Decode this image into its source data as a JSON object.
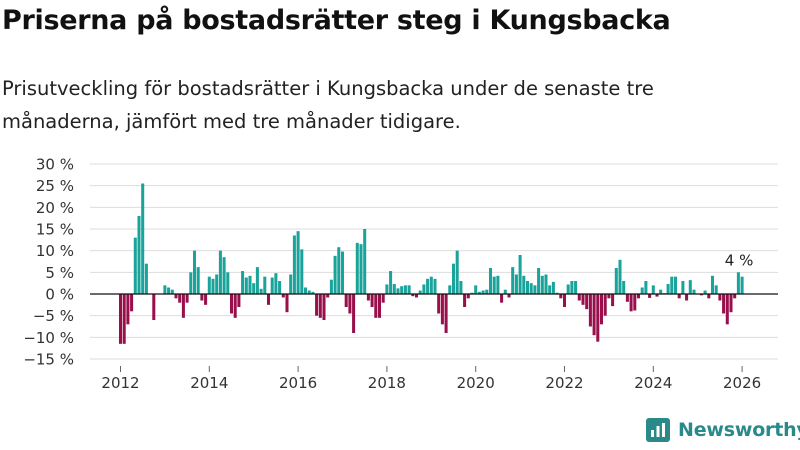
{
  "header": {
    "title": "Priserna på bostadsrätter steg i Kungsbacka",
    "subtitle": "Prisutveckling för bostadsrätter i Kungsbacka under de senaste tre månaderna, jämfört med tre månader tidigare."
  },
  "brand": {
    "name": "Newsworthy",
    "icon": "newsworthy-logo-icon"
  },
  "colors": {
    "positive": "#1aa39a",
    "negative": "#990f4b",
    "grid": "#dddddd",
    "axis": "#111111",
    "text": "#333333"
  },
  "chart_data": {
    "type": "bar",
    "title": "Priserna på bostadsrätter steg i Kungsbacka",
    "xlabel": "",
    "ylabel": "",
    "x_unit": "month",
    "start": "2012-01",
    "ylim": [
      -15,
      30
    ],
    "yticks": [
      -15,
      -10,
      -5,
      0,
      5,
      10,
      15,
      20,
      25,
      30
    ],
    "ytick_labels": [
      "−15 %",
      "−10 %",
      "−5 %",
      "0 %",
      "5 %",
      "10 %",
      "15 %",
      "20 %",
      "25 %",
      "30 %"
    ],
    "xticks": [
      2012,
      2014,
      2016,
      2018,
      2020,
      2022,
      2024,
      2026
    ],
    "xtick_labels": [
      "2012",
      "2014",
      "2016",
      "2018",
      "2020",
      "2022",
      "2024",
      "2026"
    ],
    "last_label": "4 %",
    "values": [
      -11.5,
      -11.5,
      -7,
      -4,
      13,
      18,
      25.5,
      7,
      0,
      -6,
      0,
      0,
      2,
      1.5,
      1,
      -1,
      -2,
      -5.5,
      -2,
      5,
      10,
      6.2,
      -1.5,
      -2.5,
      4,
      3.5,
      4.5,
      10,
      8.5,
      5,
      -4.5,
      -5.5,
      -3,
      5.3,
      3.8,
      4.2,
      2.5,
      6.2,
      1.2,
      4,
      -2.5,
      3.8,
      4.8,
      3,
      -0.8,
      -4.2,
      4.5,
      13.5,
      14.5,
      10.3,
      1.5,
      0.8,
      0.5,
      -5,
      -5.5,
      -6,
      -0.8,
      3.3,
      8.8,
      10.8,
      9.8,
      -3,
      -4.5,
      -9,
      11.8,
      11.5,
      15,
      -1.5,
      -3,
      -5.5,
      -5.5,
      -2,
      2.2,
      5.3,
      2.3,
      1.3,
      1.8,
      2,
      2,
      -0.5,
      -0.8,
      0.8,
      2.2,
      3.5,
      4,
      3.5,
      -4.5,
      -7,
      -9,
      2,
      7,
      10,
      3,
      -3,
      -1,
      0.3,
      2,
      0.5,
      0.8,
      1,
      6,
      4,
      4.2,
      -2,
      1,
      -0.8,
      6.2,
      4.5,
      9,
      4.2,
      3,
      2.5,
      2,
      6,
      4.2,
      4.5,
      2,
      2.8,
      0.3,
      -1,
      -3,
      2.2,
      3,
      3,
      -1.5,
      -2.5,
      -3.5,
      -7.5,
      -9.5,
      -11,
      -7,
      -5,
      -1,
      -2.8,
      6,
      7.9,
      3,
      -1.8,
      -4,
      -3.8,
      -1,
      1.5,
      3,
      -0.9,
      2,
      -0.6,
      1,
      0.2,
      2.3,
      4,
      4,
      -1,
      3,
      -1.5,
      3.2,
      1,
      0,
      -0.3,
      0.8,
      -1,
      4.2,
      2,
      -1.5,
      -4.5,
      -7,
      -4.2,
      -1,
      5,
      4
    ]
  }
}
